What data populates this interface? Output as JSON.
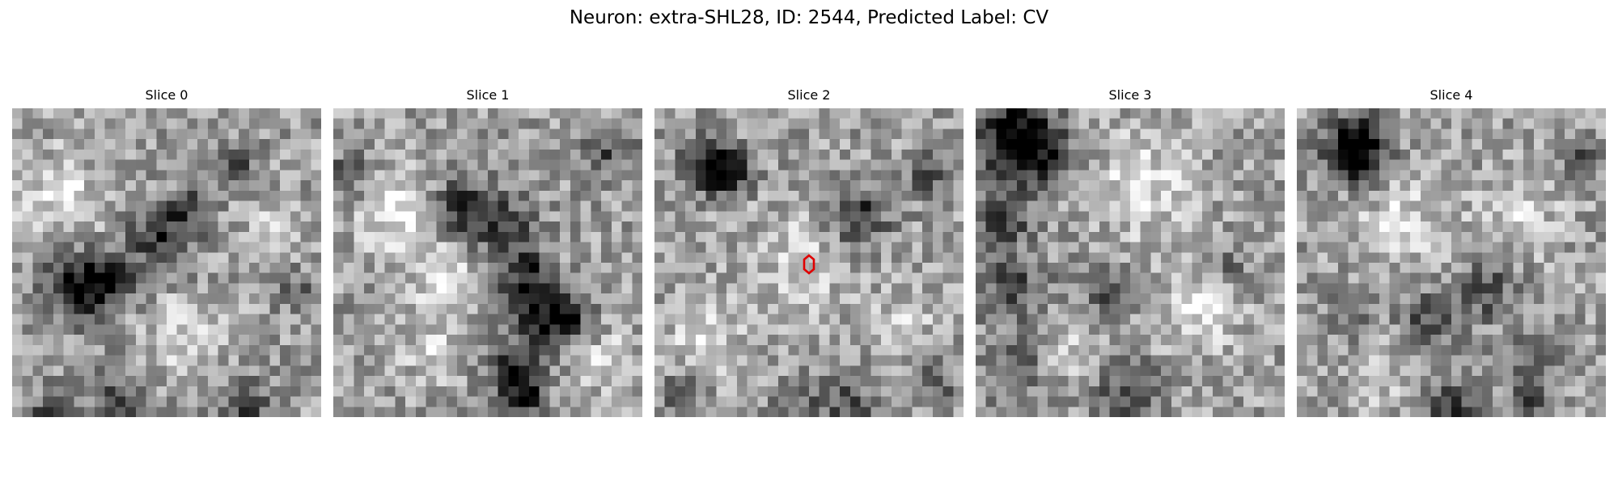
{
  "figure": {
    "title": "Neuron: extra-SHL28, ID: 2544, Predicted Label: CV"
  },
  "panels": [
    {
      "title": "Slice 0"
    },
    {
      "title": "Slice 1"
    },
    {
      "title": "Slice 2"
    },
    {
      "title": "Slice 3"
    },
    {
      "title": "Slice 4"
    }
  ],
  "colors": {
    "colormap": "gray",
    "marker": "#e00000"
  }
}
